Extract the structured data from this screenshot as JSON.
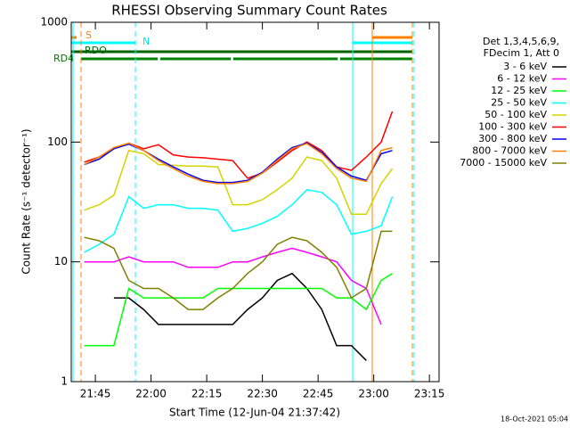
{
  "chart_data": {
    "type": "line",
    "title": "RHESSI Observing Summary Count Rates",
    "xlabel": "Start Time (12-Jun-04 21:37:42)",
    "ylabel": "Count Rate (s⁻¹ detector⁻¹)",
    "footer": "18-Oct-2021 05:04",
    "legend_header": [
      "Det 1,3,4,5,6,9,",
      "FDecim 1, Att 0"
    ],
    "flags": [
      {
        "label": "S",
        "color": "#ff8000"
      },
      {
        "label": "N",
        "color": "#00e5ee"
      },
      {
        "label": "RDO",
        "color": "#006400"
      },
      {
        "label": "RD4",
        "color": "#008000"
      }
    ],
    "log_y": true,
    "xlim": [
      1298.5,
      1397.6
    ],
    "ylim": [
      1,
      1000
    ],
    "xticks": [
      {
        "value": 1305,
        "label": "21:45"
      },
      {
        "value": 1320,
        "label": "22:00"
      },
      {
        "value": 1335,
        "label": "22:15"
      },
      {
        "value": 1350,
        "label": "22:30"
      },
      {
        "value": 1365,
        "label": "22:45"
      },
      {
        "value": 1380,
        "label": "23:00"
      },
      {
        "value": 1395,
        "label": "23:15"
      }
    ],
    "yticks": [
      1,
      10,
      100,
      1000
    ],
    "x": [
      1302,
      1306,
      1310,
      1314,
      1318,
      1322,
      1326,
      1330,
      1334,
      1338,
      1342,
      1346,
      1350,
      1354,
      1358,
      1362,
      1366,
      1370,
      1374,
      1378,
      1382,
      1385
    ],
    "series": [
      {
        "name": "3 - 6 keV",
        "color": "#000000",
        "values": [
          null,
          null,
          5,
          5,
          4,
          3,
          3,
          3,
          3,
          3,
          3,
          4,
          5,
          7,
          8,
          6,
          4,
          2,
          2,
          1.5,
          null,
          null
        ]
      },
      {
        "name": "6 - 12 keV",
        "color": "#ff00ff",
        "values": [
          10,
          10,
          10,
          11,
          10,
          10,
          10,
          9,
          9,
          9,
          10,
          10,
          11,
          12,
          13,
          12,
          11,
          10,
          7,
          6,
          3,
          null
        ]
      },
      {
        "name": "12 - 25 keV",
        "color": "#00ff00",
        "values": [
          2,
          2,
          2,
          6,
          5,
          5,
          5,
          5,
          5,
          6,
          6,
          6,
          6,
          6,
          6,
          6,
          6,
          5,
          5,
          4,
          7,
          8
        ]
      },
      {
        "name": "25 - 50 keV",
        "color": "#00ffff",
        "values": [
          12,
          14,
          17,
          35,
          28,
          30,
          30,
          28,
          28,
          27,
          18,
          19,
          21,
          24,
          30,
          40,
          38,
          30,
          17,
          18,
          20,
          35
        ]
      },
      {
        "name": "50 - 100 keV",
        "color": "#d4d400",
        "values": [
          27,
          30,
          36,
          85,
          80,
          65,
          64,
          63,
          63,
          62,
          30,
          30,
          33,
          40,
          50,
          75,
          70,
          50,
          25,
          25,
          45,
          60
        ]
      },
      {
        "name": "100 - 300 keV",
        "color": "#ff0000",
        "values": [
          68,
          75,
          88,
          98,
          88,
          95,
          78,
          75,
          74,
          72,
          70,
          50,
          55,
          68,
          85,
          100,
          85,
          62,
          58,
          75,
          100,
          180
        ]
      },
      {
        "name": "300 - 800 keV",
        "color": "#0000ff",
        "values": [
          65,
          72,
          88,
          96,
          85,
          72,
          62,
          54,
          48,
          46,
          46,
          48,
          56,
          72,
          90,
          98,
          82,
          62,
          52,
          48,
          80,
          85
        ]
      },
      {
        "name": "800 - 7000 keV",
        "color": "#ff8000",
        "values": [
          65,
          75,
          90,
          98,
          85,
          70,
          60,
          52,
          47,
          45,
          45,
          47,
          55,
          70,
          88,
          97,
          80,
          60,
          50,
          47,
          85,
          90
        ]
      },
      {
        "name": "7000 - 15000 keV",
        "color": "#808000",
        "values": [
          16,
          15,
          13,
          7,
          6,
          6,
          5,
          4,
          4,
          5,
          6,
          8,
          10,
          14,
          16,
          15,
          12,
          9,
          5,
          6,
          18,
          18
        ]
      }
    ]
  }
}
